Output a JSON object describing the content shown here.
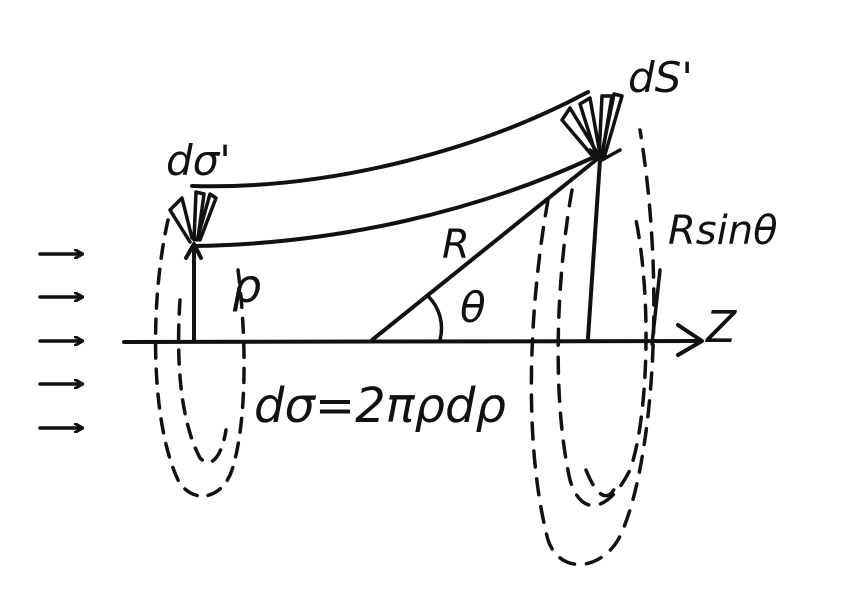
{
  "diagram": {
    "colors": {
      "ink": "#111111",
      "background": "#ffffff"
    },
    "labels": {
      "d_sigma_prime": "dσ'",
      "d_s_prime": "dS'",
      "r_sin_theta": "Rsinθ",
      "radius": "R",
      "theta": "θ",
      "rho": "ρ",
      "z_axis": "Z",
      "area_element": "dσ=2πρdρ"
    },
    "incident_arrow_count": 5
  }
}
